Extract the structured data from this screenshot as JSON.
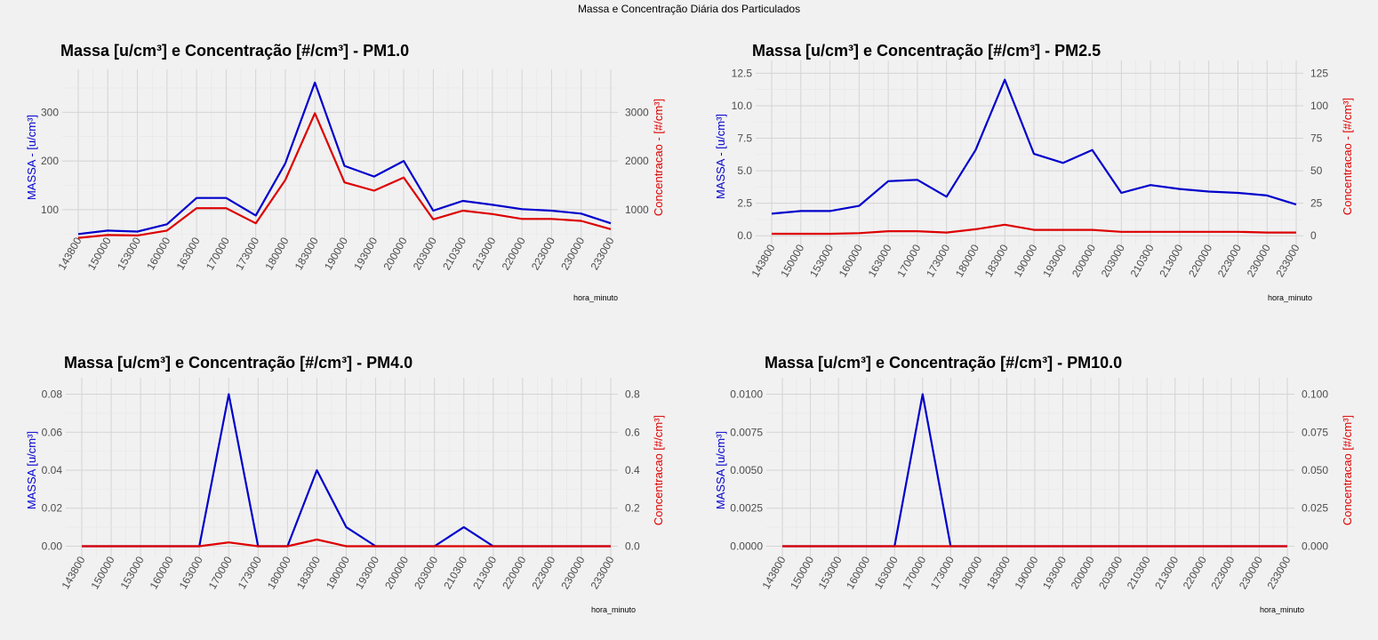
{
  "figure_title": "Massa e Concentração Diária dos Particulados",
  "colors": {
    "massa": "#0000cc",
    "concentracao": "#dd0000"
  },
  "chart_data": [
    {
      "type": "line",
      "title": "Massa [u/cm³] e Concentração [#/cm³] - PM1.0",
      "xlabel": "hora_minuto",
      "ylabel": "MASSA - [u/cm³]",
      "ylabel2": "Concentracao - [#/cm³]",
      "categories": [
        "143800",
        "150000",
        "153000",
        "160000",
        "163000",
        "170000",
        "173000",
        "180000",
        "183000",
        "190000",
        "193000",
        "200000",
        "203000",
        "210300",
        "213000",
        "220000",
        "223000",
        "230000",
        "233000"
      ],
      "ylim": [
        45,
        370
      ],
      "yticks": [
        100,
        200,
        300
      ],
      "ylim2": [
        450,
        3700
      ],
      "yticks2": [
        1000,
        2000,
        3000
      ],
      "series": [
        {
          "name": "MASSA",
          "axis": "left",
          "values": [
            50,
            57,
            55,
            70,
            124,
            124,
            88,
            195,
            361,
            190,
            168,
            200,
            98,
            118,
            110,
            101,
            98,
            92,
            72
          ]
        },
        {
          "name": "Concentracao",
          "axis": "right",
          "values": [
            420,
            480,
            470,
            570,
            1030,
            1030,
            720,
            1610,
            2980,
            1560,
            1390,
            1660,
            800,
            980,
            910,
            810,
            810,
            770,
            600
          ]
        }
      ]
    },
    {
      "type": "line",
      "title": "Massa [u/cm³] e Concentração [#/cm³] - PM2.5",
      "xlabel": "hora_minuto",
      "ylabel": "MASSA - [u/cm³]",
      "ylabel2": "Concentracao - [#/cm³]",
      "categories": [
        "143800",
        "150000",
        "153000",
        "160000",
        "163000",
        "170000",
        "173000",
        "180000",
        "183000",
        "190000",
        "193000",
        "200000",
        "203000",
        "210300",
        "213000",
        "220000",
        "223000",
        "230000",
        "233000"
      ],
      "ylim": [
        -0.6,
        12.8
      ],
      "yticks": [
        0.0,
        2.5,
        5.0,
        7.5,
        10.0,
        12.5
      ],
      "ylim2": [
        -6,
        128
      ],
      "yticks2": [
        0,
        25,
        50,
        75,
        100,
        125
      ],
      "series": [
        {
          "name": "MASSA",
          "axis": "left",
          "values": [
            1.7,
            1.9,
            1.9,
            2.3,
            4.2,
            4.3,
            3.0,
            6.6,
            12.0,
            6.3,
            5.6,
            6.6,
            3.3,
            3.9,
            3.6,
            3.4,
            3.3,
            3.1,
            2.4
          ]
        },
        {
          "name": "Concentracao",
          "axis": "right",
          "values": [
            1.5,
            1.5,
            1.5,
            2.0,
            3.5,
            3.5,
            2.5,
            5.0,
            8.5,
            4.5,
            4.5,
            4.5,
            3.0,
            3.0,
            3.0,
            3.0,
            3.0,
            2.5,
            2.5
          ]
        }
      ]
    },
    {
      "type": "line",
      "title": "Massa [u/cm³] e Concentração [#/cm³] - PM4.0",
      "xlabel": "hora_minuto",
      "ylabel": "MASSA [u/cm³]",
      "ylabel2": "Concentracao [#/cm³]",
      "categories": [
        "143800",
        "150000",
        "153000",
        "160000",
        "163000",
        "170000",
        "173000",
        "180000",
        "183000",
        "190000",
        "193000",
        "200000",
        "203000",
        "210300",
        "213000",
        "220000",
        "223000",
        "230000",
        "233000"
      ],
      "ylim": [
        -0.004,
        0.084
      ],
      "yticks": [
        0.0,
        0.02,
        0.04,
        0.06,
        0.08
      ],
      "ylim2": [
        -0.04,
        0.84
      ],
      "yticks2": [
        0.0,
        0.2,
        0.4,
        0.6,
        0.8
      ],
      "series": [
        {
          "name": "MASSA",
          "axis": "left",
          "values": [
            0,
            0,
            0,
            0,
            0,
            0.08,
            0,
            0,
            0.04,
            0.01,
            0,
            0,
            0,
            0.01,
            0,
            0,
            0,
            0,
            0
          ]
        },
        {
          "name": "Concentracao",
          "axis": "right",
          "values": [
            0,
            0,
            0,
            0,
            0,
            0.02,
            0,
            0,
            0.035,
            0,
            0,
            0,
            0,
            0,
            0,
            0,
            0,
            0,
            0
          ]
        }
      ]
    },
    {
      "type": "line",
      "title": "Massa [u/cm³] e Concentração [#/cm³] - PM10.0",
      "xlabel": "hora_minuto",
      "ylabel": "MASSA [u/cm³]",
      "ylabel2": "Concentracao [#/cm³]",
      "categories": [
        "143800",
        "150000",
        "153000",
        "160000",
        "163000",
        "170000",
        "173000",
        "180000",
        "183000",
        "190000",
        "193000",
        "200000",
        "203000",
        "210300",
        "213000",
        "220000",
        "223000",
        "230000",
        "233000"
      ],
      "ylim": [
        -0.0005,
        0.0105
      ],
      "yticks": [
        0.0,
        0.0025,
        0.005,
        0.0075,
        0.01
      ],
      "ytick_decimals": 4,
      "ylim2": [
        -0.005,
        0.105
      ],
      "yticks2": [
        0.0,
        0.025,
        0.05,
        0.075,
        0.1
      ],
      "ytick2_decimals": 3,
      "series": [
        {
          "name": "MASSA",
          "axis": "left",
          "values": [
            0,
            0,
            0,
            0,
            0,
            0.01,
            0,
            0,
            0,
            0,
            0,
            0,
            0,
            0,
            0,
            0,
            0,
            0,
            0
          ]
        },
        {
          "name": "Concentracao",
          "axis": "right",
          "values": [
            0,
            0,
            0,
            0,
            0,
            0,
            0,
            0,
            0,
            0,
            0,
            0,
            0,
            0,
            0,
            0,
            0,
            0,
            0
          ]
        }
      ]
    }
  ]
}
